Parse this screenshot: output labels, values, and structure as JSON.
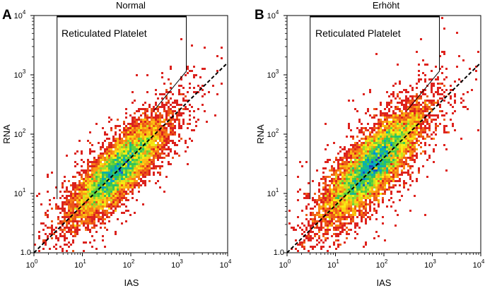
{
  "chart_data": [
    {
      "type": "scatter",
      "panel_letter": "A",
      "title": "Normal",
      "xlabel": "IAS",
      "ylabel": "RNA",
      "scale": "log10",
      "xlim": [
        1,
        10000
      ],
      "ylim": [
        1,
        10000
      ],
      "x_ticks": [
        {
          "base": "10",
          "exp": "0"
        },
        {
          "base": "10",
          "exp": "1"
        },
        {
          "base": "10",
          "exp": "2"
        },
        {
          "base": "10",
          "exp": "3"
        },
        {
          "base": "10",
          "exp": "4"
        }
      ],
      "y_ticks": [
        {
          "base": "10",
          "exp": "1"
        },
        {
          "base": "10",
          "exp": "2"
        },
        {
          "base": "10",
          "exp": "3"
        },
        {
          "base": "10",
          "exp": "4"
        }
      ],
      "y_origin_label": "1.0",
      "gate_label": "Reticulated Platelet",
      "gate_vertices_data": [
        [
          3,
          8
        ],
        [
          3,
          10000
        ],
        [
          1400,
          10000
        ],
        [
          1400,
          1150
        ],
        [
          300,
          250
        ]
      ],
      "reference_line": {
        "style": "dashed",
        "from": [
          1,
          1
        ],
        "to": [
          10000,
          1600
        ]
      },
      "density": {
        "center": [
          55,
          25
        ],
        "spread_log": [
          0.48,
          0.42
        ],
        "correlation": 0.82,
        "scatter_points": 8000
      }
    },
    {
      "type": "scatter",
      "panel_letter": "B",
      "title": "Erhöht",
      "xlabel": "IAS",
      "ylabel": "RNA",
      "scale": "log10",
      "xlim": [
        1,
        10000
      ],
      "ylim": [
        1,
        10000
      ],
      "x_ticks": [
        {
          "base": "10",
          "exp": "0"
        },
        {
          "base": "10",
          "exp": "1"
        },
        {
          "base": "10",
          "exp": "2"
        },
        {
          "base": "10",
          "exp": "3"
        },
        {
          "base": "10",
          "exp": "4"
        }
      ],
      "y_ticks": [
        {
          "base": "10",
          "exp": "1"
        },
        {
          "base": "10",
          "exp": "2"
        },
        {
          "base": "10",
          "exp": "3"
        },
        {
          "base": "10",
          "exp": "4"
        }
      ],
      "y_origin_label": "1.0",
      "gate_label": "Reticulated Platelet",
      "gate_vertices_data": [
        [
          3,
          8
        ],
        [
          3,
          10000
        ],
        [
          1400,
          10000
        ],
        [
          1400,
          1150
        ],
        [
          300,
          250
        ]
      ],
      "reference_line": {
        "style": "dashed",
        "from": [
          1,
          1
        ],
        "to": [
          10000,
          1600
        ]
      },
      "density": {
        "center": [
          60,
          30
        ],
        "spread_log": [
          0.5,
          0.46
        ],
        "correlation": 0.8,
        "scatter_points": 8500
      }
    }
  ]
}
